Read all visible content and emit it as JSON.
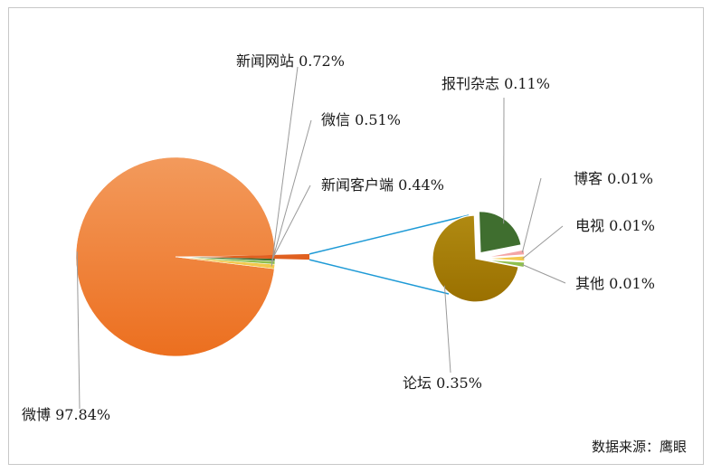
{
  "chart_data": {
    "type": "pie",
    "subtype": "pie-of-pie",
    "title": "",
    "slices": [
      {
        "label": "微博",
        "value": 97.84,
        "text": "微博 97.84%",
        "color": "#f07f2e",
        "group": "main"
      },
      {
        "label": "新闻网站",
        "value": 0.72,
        "text": "新闻网站 0.72%",
        "color": "#f2c94c",
        "group": "main"
      },
      {
        "label": "微信",
        "value": 0.51,
        "text": "微信 0.51%",
        "color": "#8fbf4e",
        "group": "main"
      },
      {
        "label": "新闻客户端",
        "value": 0.44,
        "text": "新闻客户端 0.44%",
        "color": "#3f6e2f",
        "group": "main"
      },
      {
        "label": "论坛",
        "value": 0.35,
        "text": "论坛 0.35%",
        "color": "#a37a00",
        "group": "secondary"
      },
      {
        "label": "报刊杂志",
        "value": 0.11,
        "text": "报刊杂志 0.11%",
        "color": "#3f6e2f",
        "group": "secondary"
      },
      {
        "label": "博客",
        "value": 0.01,
        "text": "博客 0.01%",
        "color": "#f4a6a6",
        "group": "secondary"
      },
      {
        "label": "电视",
        "value": 0.01,
        "text": "电视 0.01%",
        "color": "#f2c94c",
        "group": "secondary"
      },
      {
        "label": "其他",
        "value": 0.01,
        "text": "其他 0.01%",
        "color": "#8fbf4e",
        "group": "secondary"
      }
    ],
    "other_slice_color": "#e06020",
    "connector_color": "#1e9ad6",
    "leader_color": "#9a9a9a",
    "border_color": "#c8c8c8"
  },
  "source": "数据来源：鹰眼"
}
